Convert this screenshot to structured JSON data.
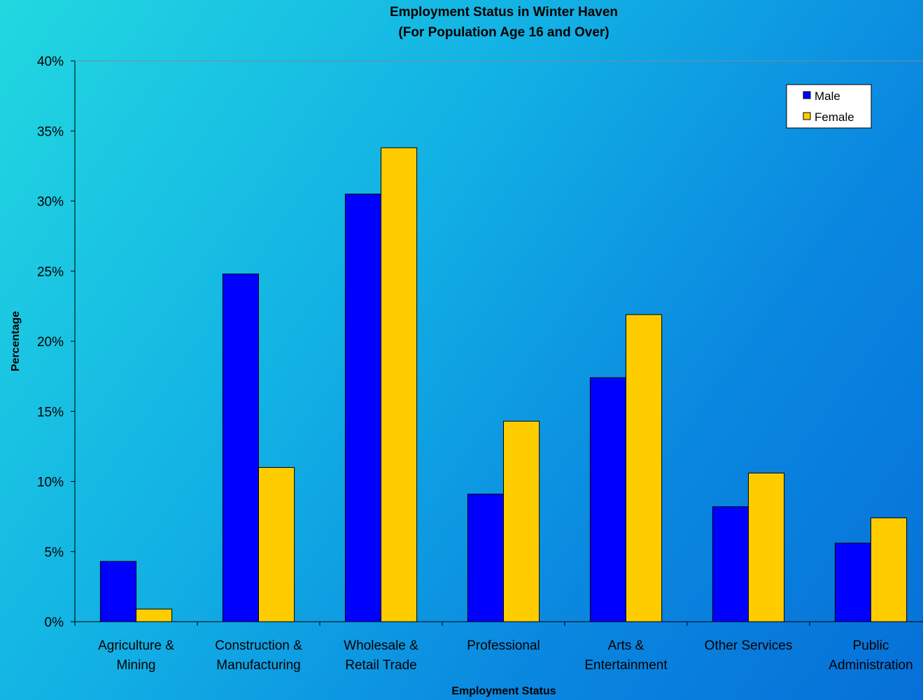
{
  "chart_data": {
    "type": "bar",
    "title": "Employment Status in Winter Haven",
    "subtitle": "(For Population Age 16 and Over)",
    "xlabel": "Employment Status",
    "ylabel": "Percentage",
    "ylim": [
      0,
      40
    ],
    "yticks": [
      "0%",
      "5%",
      "10%",
      "15%",
      "20%",
      "25%",
      "30%",
      "35%",
      "40%"
    ],
    "categories": [
      [
        "Agriculture &",
        "Mining"
      ],
      [
        "Construction &",
        "Manufacturing"
      ],
      [
        "Wholesale &",
        "Retail Trade"
      ],
      [
        "Professional"
      ],
      [
        "Arts &",
        "Entertainment"
      ],
      [
        "Other Services"
      ],
      [
        "Public",
        "Administration"
      ]
    ],
    "series": [
      {
        "name": "Male",
        "color": "#0000ff",
        "values": [
          4.3,
          24.8,
          30.5,
          9.1,
          17.4,
          8.2,
          5.6
        ]
      },
      {
        "name": "Female",
        "color": "#ffcc00",
        "values": [
          0.9,
          11.0,
          33.8,
          14.3,
          21.9,
          10.6,
          7.4
        ]
      }
    ],
    "legend_position": "top-right",
    "grid": false
  }
}
